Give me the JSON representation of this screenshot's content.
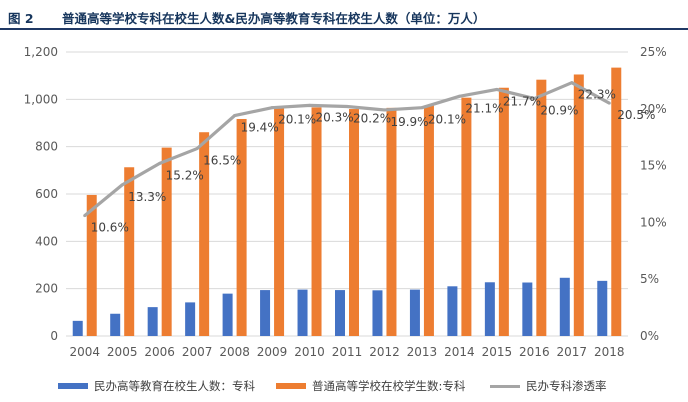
{
  "figure": {
    "label": "图 2",
    "title": "普通高等学校专科在校生人数&民办高等教育专科在校生人数（单位：万人）"
  },
  "colors": {
    "private": "#4472c4",
    "general": "#ed7d31",
    "rate": "#a5a5a5",
    "grid": "#d9d9d9"
  },
  "chart_data": {
    "type": "bar",
    "title": "普通高等学校专科在校生人数&民办高等教育专科在校生人数（单位：万人）",
    "categories": [
      "2004",
      "2005",
      "2006",
      "2007",
      "2008",
      "2009",
      "2010",
      "2011",
      "2012",
      "2013",
      "2014",
      "2015",
      "2016",
      "2017",
      "2018"
    ],
    "y_left": {
      "ylim": [
        0,
        1200
      ],
      "ticks": [
        "0",
        "200",
        "400",
        "600",
        "800",
        "1,000",
        "1,200"
      ]
    },
    "y_right": {
      "ylim": [
        0,
        25
      ],
      "ticks": [
        "0%",
        "5%",
        "10%",
        "15%",
        "20%",
        "25%"
      ]
    },
    "series": [
      {
        "name": "民办高等教育在校生人数：专科",
        "kind": "bar",
        "axis": "left",
        "values": [
          64,
          94,
          122,
          142,
          179,
          194,
          196,
          194,
          193,
          196,
          210,
          227,
          226,
          246,
          233
        ]
      },
      {
        "name": "普通高等学校在校学生数:专科",
        "kind": "bar",
        "axis": "left",
        "values": [
          596,
          713,
          796,
          861,
          917,
          965,
          966,
          959,
          964,
          974,
          1007,
          1049,
          1083,
          1105,
          1134
        ]
      },
      {
        "name": "民办专科渗透率",
        "kind": "line",
        "axis": "right",
        "values": [
          10.6,
          13.3,
          15.2,
          16.5,
          19.4,
          20.1,
          20.3,
          20.2,
          19.9,
          20.1,
          21.1,
          21.7,
          20.9,
          22.3,
          20.5
        ],
        "labels": [
          "10.6%",
          "13.3%",
          "15.2%",
          "16.5%",
          "19.4%",
          "20.1%",
          "20.3%",
          "20.2%",
          "19.9%",
          "20.1%",
          "21.1%",
          "21.7%",
          "20.9%",
          "22.3%",
          "20.5%"
        ]
      }
    ]
  },
  "legend": [
    {
      "label": "民办高等教育在校生人数：专科"
    },
    {
      "label": "普通高等学校在校学生数:专科"
    },
    {
      "label": "民办专科渗透率"
    }
  ]
}
